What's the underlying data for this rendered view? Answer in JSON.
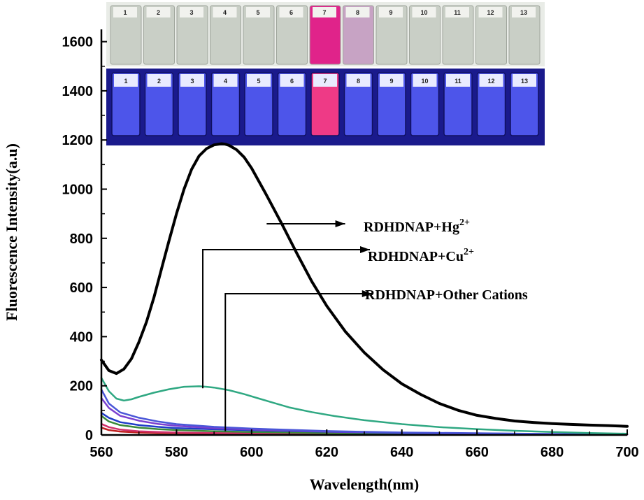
{
  "chart_data": {
    "type": "line",
    "xlabel": "Wavelength(nm)",
    "ylabel": "Fluorescence Intensity(a.u)",
    "xlim": [
      560,
      700
    ],
    "ylim": [
      0,
      1650
    ],
    "xticks": [
      560,
      580,
      600,
      620,
      640,
      660,
      680,
      700
    ],
    "yticks": [
      0,
      200,
      400,
      600,
      800,
      1000,
      1200,
      1400,
      1600
    ],
    "grid": false,
    "series": [
      {
        "name": "RDHDNAP+Hg2+",
        "color": "#000000",
        "x": [
          560,
          562,
          564,
          566,
          568,
          570,
          572,
          574,
          576,
          578,
          580,
          582,
          584,
          586,
          588,
          590,
          592,
          593,
          594,
          596,
          598,
          600,
          604,
          608,
          612,
          616,
          620,
          625,
          630,
          635,
          640,
          645,
          650,
          655,
          660,
          665,
          670,
          675,
          680,
          685,
          690,
          695,
          700
        ],
        "y": [
          305,
          262,
          250,
          268,
          310,
          378,
          460,
          560,
          675,
          790,
          900,
          1000,
          1080,
          1135,
          1165,
          1180,
          1185,
          1183,
          1178,
          1160,
          1130,
          1085,
          975,
          860,
          740,
          625,
          525,
          420,
          335,
          265,
          208,
          165,
          128,
          100,
          80,
          67,
          57,
          51,
          46,
          43,
          40,
          38,
          35
        ]
      },
      {
        "name": "RDHDNAP+Cu2+",
        "color": "#2fa882",
        "x": [
          560,
          562,
          564,
          566,
          568,
          570,
          574,
          578,
          582,
          586,
          588,
          590,
          594,
          598,
          602,
          606,
          610,
          616,
          622,
          630,
          640,
          650,
          660,
          670,
          680,
          690,
          700
        ],
        "y": [
          232,
          178,
          148,
          140,
          145,
          155,
          172,
          186,
          196,
          198,
          196,
          193,
          182,
          166,
          148,
          130,
          112,
          93,
          77,
          60,
          44,
          32,
          24,
          17,
          12,
          8,
          5
        ]
      },
      {
        "name": "",
        "color": "#4a56d8",
        "x": [
          560,
          562,
          565,
          570,
          575,
          580,
          590,
          600,
          620,
          640,
          660,
          680,
          700
        ],
        "y": [
          185,
          128,
          92,
          70,
          55,
          44,
          33,
          26,
          16,
          10,
          7,
          4,
          3
        ]
      },
      {
        "name": "",
        "color": "#7a3fd0",
        "x": [
          560,
          562,
          565,
          570,
          575,
          580,
          590,
          600,
          620,
          640,
          660,
          680,
          700
        ],
        "y": [
          150,
          110,
          78,
          58,
          45,
          37,
          28,
          22,
          14,
          9,
          6,
          4,
          3
        ]
      },
      {
        "name": "",
        "color": "#1e3cc8",
        "x": [
          560,
          562,
          565,
          570,
          575,
          580,
          590,
          600,
          620,
          640,
          660,
          680,
          700
        ],
        "y": [
          90,
          70,
          52,
          40,
          33,
          28,
          23,
          19,
          13,
          8,
          5,
          3,
          2
        ]
      },
      {
        "name": "",
        "color": "#3a8a3a",
        "x": [
          560,
          562,
          565,
          570,
          575,
          580,
          590,
          600,
          620,
          640,
          660,
          680,
          700
        ],
        "y": [
          78,
          55,
          40,
          30,
          24,
          20,
          15,
          12,
          8,
          5,
          4,
          3,
          2
        ]
      },
      {
        "name": "",
        "color": "#d0306a",
        "x": [
          560,
          562,
          565,
          570,
          575,
          580,
          590,
          600,
          620,
          640,
          660,
          680,
          700
        ],
        "y": [
          45,
          32,
          22,
          15,
          12,
          10,
          8,
          7,
          5,
          4,
          3,
          2,
          2
        ]
      },
      {
        "name": "",
        "color": "#c02020",
        "x": [
          560,
          562,
          565,
          570,
          575,
          580,
          590,
          600,
          620,
          640,
          660,
          680,
          700
        ],
        "y": [
          30,
          20,
          14,
          10,
          8,
          7,
          6,
          5,
          4,
          3,
          2,
          2,
          1
        ]
      }
    ],
    "annotations": [
      {
        "text": "RDHDNAP+Hg",
        "sup": "2+"
      },
      {
        "text": "RDHDNAP+Cu",
        "sup": "2+"
      },
      {
        "text": "RDHDNAP+Other Cations",
        "sup": ""
      }
    ],
    "inset": {
      "vial_numbers": [
        "1",
        "2",
        "3",
        "4",
        "5",
        "6",
        "7",
        "8",
        "9",
        "10",
        "11",
        "12",
        "13"
      ],
      "highlight_vial": "7",
      "daylight_colors": {
        "vial": "#c9cfc6",
        "highlight": "#e0238a",
        "neighbor": "#c7a3c4"
      },
      "uv_colors": {
        "background": "#1a1a8c",
        "vial": "#4d55ea",
        "highlight": "#ee3a86"
      }
    }
  }
}
